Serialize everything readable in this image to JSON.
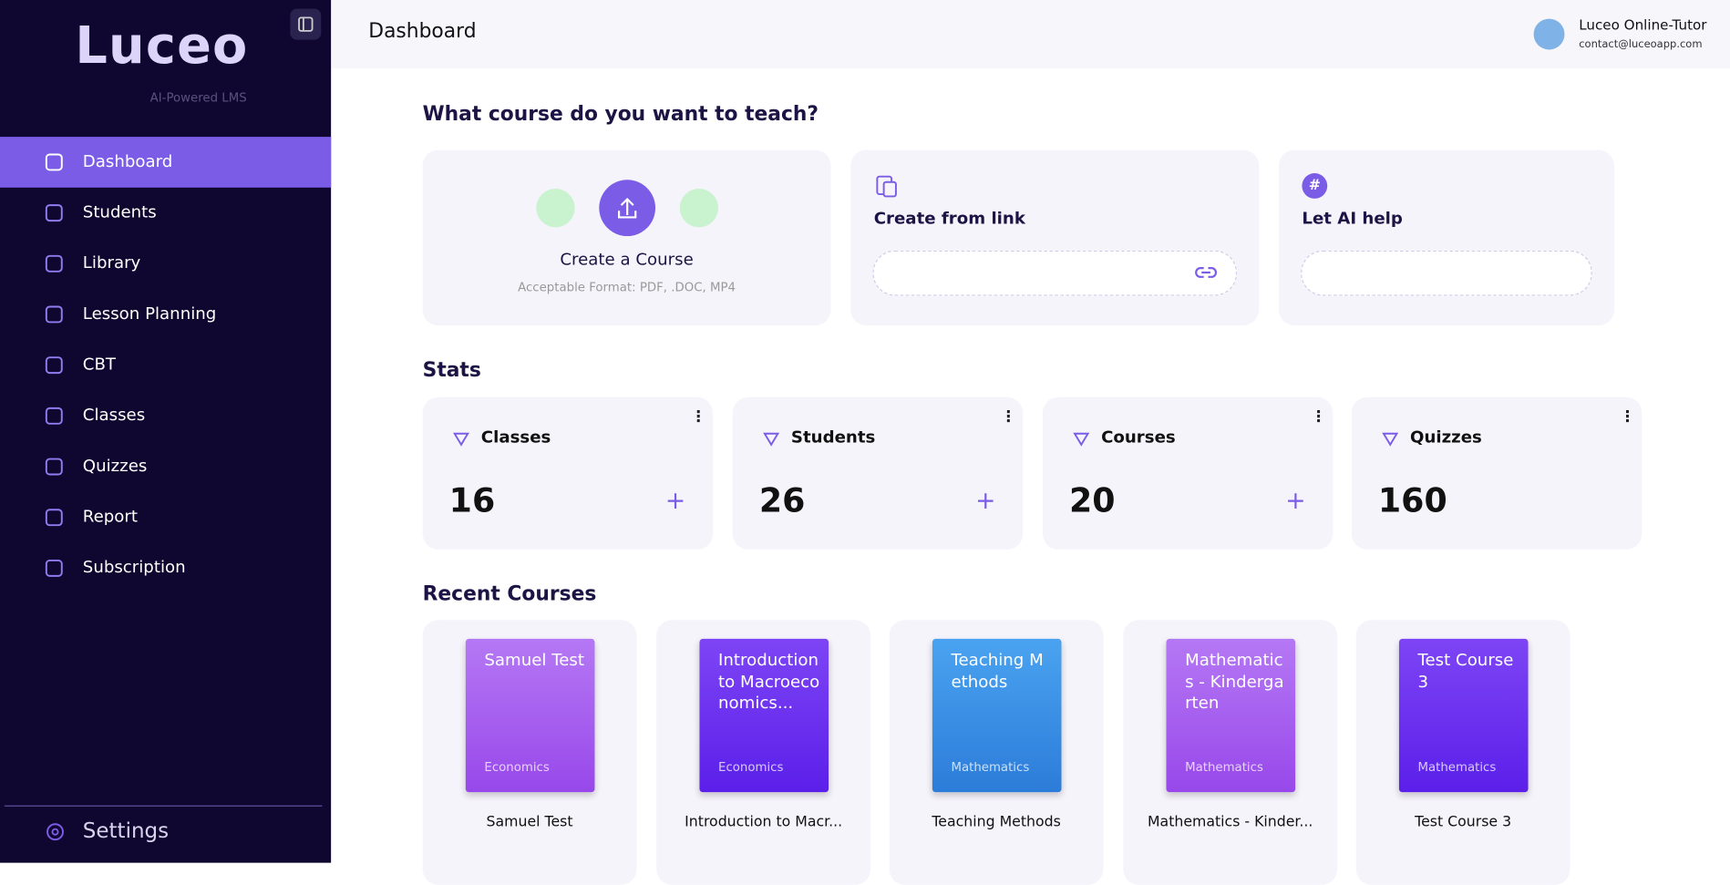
{
  "sidebar": {
    "logo": "Luceo",
    "tagline": "AI-Powered LMS",
    "nav": [
      "Dashboard",
      "Students",
      "Library",
      "Lesson Planning",
      "CBT",
      "Classes",
      "Quizzes",
      "Report",
      "Subscription"
    ],
    "settings": "Settings"
  },
  "header": {
    "title": "Dashboard",
    "user_name": "Luceo Online-Tutor",
    "user_email": "contact@luceoapp.com"
  },
  "create": {
    "heading": "What course do you want to teach?",
    "upload_title": "Create a Course",
    "upload_note": "Acceptable Format: PDF, .DOC, MP4",
    "link_title": "Create from link",
    "ai_title": "Let AI help"
  },
  "stats": {
    "heading": "Stats",
    "items": [
      {
        "label": "Classes",
        "value": "16"
      },
      {
        "label": "Students",
        "value": "26"
      },
      {
        "label": "Courses",
        "value": "20"
      },
      {
        "label": "Quizzes",
        "value": "160"
      }
    ]
  },
  "recent": {
    "heading": "Recent Courses",
    "items": [
      {
        "cover_title": "Samuel Test",
        "category": "Economics",
        "caption": "Samuel Test"
      },
      {
        "cover_title": "Introduction to Macroeconomics...",
        "category": "Economics",
        "caption": "Introduction to Macr..."
      },
      {
        "cover_title": "Teaching Methods",
        "category": "Mathematics",
        "caption": "Teaching Methods"
      },
      {
        "cover_title": "Mathematics - Kindergarten",
        "category": "Mathematics",
        "caption": "Mathematics - Kinder..."
      },
      {
        "cover_title": "Test Course 3",
        "category": "Mathematics",
        "caption": "Test Course 3"
      }
    ]
  }
}
